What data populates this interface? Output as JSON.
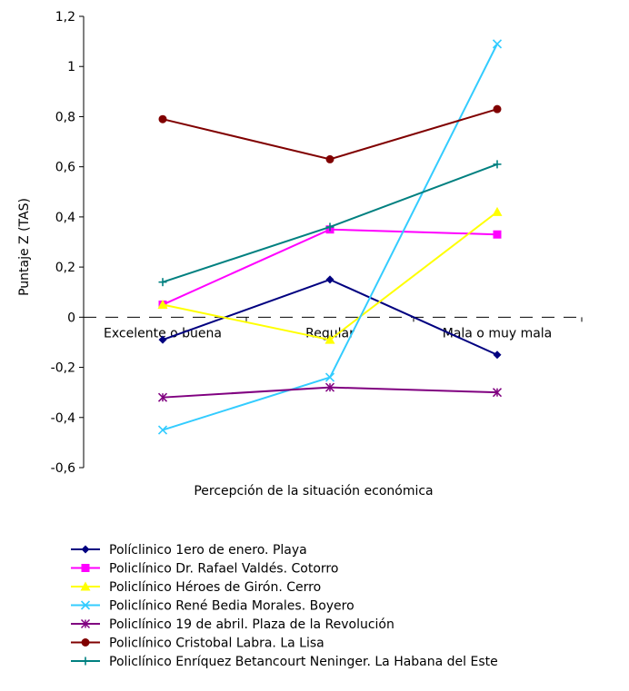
{
  "chart_data": {
    "type": "line",
    "title": "",
    "xlabel": "Percepción de la situación económica",
    "ylabel": "Puntaje Z (TAS)",
    "categories": [
      "Excelente o buena",
      "Regular",
      "Mala o muy mala"
    ],
    "ylim": [
      -0.6,
      1.2
    ],
    "yticks": [
      -0.6,
      -0.4,
      -0.2,
      0,
      0.2,
      0.4,
      0.6,
      0.8,
      1,
      1.2
    ],
    "ytick_labels": [
      "-0,6",
      "-0,4",
      "-0,2",
      "0",
      "0,2",
      "0,4",
      "0,6",
      "0,8",
      "1",
      "1,2"
    ],
    "grid": false,
    "legend_position": "bottom",
    "series": [
      {
        "name": "Políclinico 1ero de enero. Playa",
        "values": [
          -0.09,
          0.15,
          -0.15
        ],
        "color": "#000080",
        "marker": "diamond"
      },
      {
        "name": "Policlínico  Dr. Rafael Valdés. Cotorro",
        "values": [
          0.05,
          0.35,
          0.33
        ],
        "color": "#ff00ff",
        "marker": "square"
      },
      {
        "name": "Policlínico Héroes de Girón. Cerro",
        "values": [
          0.05,
          -0.09,
          0.42
        ],
        "color": "#ffff00",
        "marker": "triangle"
      },
      {
        "name": "Policlínico René Bedia Morales. Boyero",
        "values": [
          -0.45,
          -0.24,
          1.09
        ],
        "color": "#33ccff",
        "marker": "x"
      },
      {
        "name": "Policlínico 19 de abril. Plaza de la Revolución",
        "values": [
          -0.32,
          -0.28,
          -0.3
        ],
        "color": "#800080",
        "marker": "star"
      },
      {
        "name": "Policlínico Cristobal Labra. La Lisa",
        "values": [
          0.79,
          0.63,
          0.83
        ],
        "color": "#800000",
        "marker": "circle"
      },
      {
        "name": "Policlínico Enríquez Betancourt Neninger. La Habana del Este",
        "values": [
          0.14,
          0.36,
          0.61
        ],
        "color": "#008080",
        "marker": "plus"
      }
    ]
  }
}
